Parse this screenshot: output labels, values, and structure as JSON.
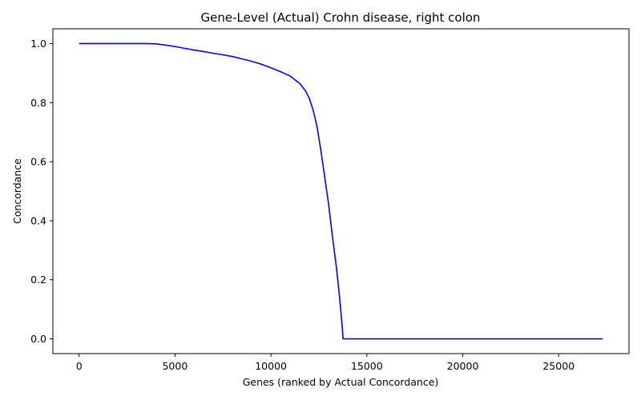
{
  "chart_data": {
    "type": "line",
    "title": "Gene-Level (Actual) Crohn disease, right colon",
    "xlabel": "Genes (ranked by Actual Concordance)",
    "ylabel": "Concordance",
    "xlim": [
      -1365,
      28665
    ],
    "ylim": [
      -0.05,
      1.05
    ],
    "xticks": [
      0,
      5000,
      10000,
      15000,
      20000,
      25000
    ],
    "xtick_labels": [
      "0",
      "5000",
      "10000",
      "15000",
      "20000",
      "25000"
    ],
    "yticks": [
      0.0,
      0.2,
      0.4,
      0.6,
      0.8,
      1.0
    ],
    "ytick_labels": [
      "0.0",
      "0.2",
      "0.4",
      "0.6",
      "0.8",
      "1.0"
    ],
    "grid": false,
    "line_color": "#0000ff",
    "series": [
      {
        "x": [
          0,
          1000,
          2000,
          3000,
          3500,
          4000,
          4500,
          5000,
          5500,
          6000,
          6500,
          7000,
          7500,
          8000,
          8500,
          9000,
          9500,
          10000,
          10500,
          11000,
          11200,
          11500,
          11800,
          12000,
          12200,
          12400,
          12600,
          12800,
          13000,
          13200,
          13400,
          13550,
          13650,
          13730,
          13760,
          14000,
          16000,
          18000,
          20000,
          22000,
          24000,
          26000,
          27300
        ],
        "y": [
          1.0,
          1.0,
          1.0,
          1.0,
          1.0,
          0.999,
          0.995,
          0.99,
          0.984,
          0.978,
          0.973,
          0.967,
          0.962,
          0.956,
          0.948,
          0.94,
          0.93,
          0.918,
          0.905,
          0.89,
          0.88,
          0.865,
          0.84,
          0.815,
          0.775,
          0.72,
          0.64,
          0.55,
          0.46,
          0.35,
          0.25,
          0.16,
          0.09,
          0.03,
          0.0,
          0.0,
          0.0,
          0.0,
          0.0,
          0.0,
          0.0,
          0.0,
          0.0
        ]
      }
    ]
  }
}
